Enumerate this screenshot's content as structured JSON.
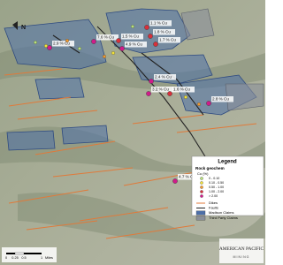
{
  "map": {
    "north": "N",
    "labels": [
      "1.1 % Cu",
      "1.8 % Cu",
      "7.6 % Cu",
      "1.5 % Cu",
      "1.7 % Cu",
      "2.9 % Cu",
      "4.9 % Cu",
      "2.4 % Cu",
      "3.2 % Cu",
      "1.6 % Cu",
      "2.8 % Cu",
      "4.7 % Cu"
    ],
    "legend": {
      "title": "Legend",
      "section": "Rock geochem",
      "unit": "Cu (%)",
      "grades": [
        {
          "label": "0 - 0.10",
          "color": "#b8e07a"
        },
        {
          "label": "0.10 - 0.50",
          "color": "#f2e23a"
        },
        {
          "label": "0.50 - 1.00",
          "color": "#f29a2e"
        },
        {
          "label": "1.00 - 2.00",
          "color": "#d8303a"
        },
        {
          "label": "> 2.00",
          "color": "#d01b8a"
        }
      ],
      "lines": [
        {
          "label": "Dikes",
          "color": "#e07a3a"
        },
        {
          "label": "Faults",
          "color": "#222222"
        }
      ],
      "areas": [
        {
          "label": "Madison Claims",
          "color": "#4d6fa8"
        },
        {
          "label": "Third Party Claims",
          "color": "#8a8f99"
        }
      ]
    },
    "scale": {
      "ticks": [
        "0",
        "0.25",
        "0.5",
        "1"
      ],
      "unit": "Miles"
    },
    "logo": {
      "name": "AMERICAN PACIFIC",
      "sub": "MINING"
    }
  }
}
